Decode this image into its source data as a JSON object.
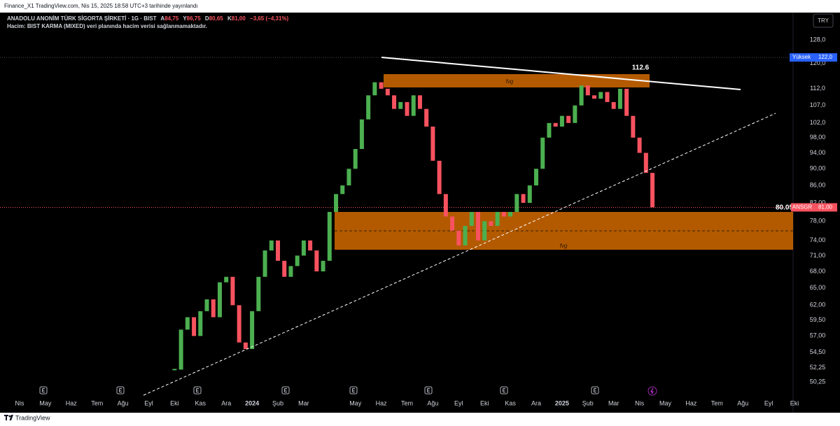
{
  "header": {
    "published": "Finance_X1 TradingView.com, Nis 15, 2025 18:58 UTC+3 tarihinde yayınlandı",
    "currency": "TRY"
  },
  "chart_data": {
    "type": "candlestick",
    "title": "ANADOLU ANONİM TÜRK SİGORTA ŞİRKETİ · 1G · BIST",
    "ohlc": [
      {
        "key": "A",
        "value": "84,75"
      },
      {
        "key": "Y",
        "value": "86,75"
      },
      {
        "key": "D",
        "value": "80,65"
      },
      {
        "key": "K",
        "value": "81,00"
      }
    ],
    "change": "−3,65 (−4,31%)",
    "volume_note": "Hacim: BIST KARMA (MIXED) veri planında hacim verisi sağlanmamaktadır.",
    "categories": [
      "Nis",
      null,
      null,
      null,
      "May",
      null,
      null,
      null,
      "Haz",
      null,
      null,
      null,
      "Tem",
      null,
      null,
      null,
      "Ağu",
      null,
      null,
      null,
      "Eyl",
      null,
      null,
      null,
      "Eki",
      null,
      null,
      null,
      "Kas",
      null,
      null,
      null,
      "Ara",
      null,
      null,
      null,
      "2024",
      null,
      null,
      null,
      "Şub",
      null,
      null,
      null,
      "Mar",
      null,
      null,
      null,
      null,
      null,
      null,
      null,
      "May",
      null,
      null,
      null,
      "Haz",
      null,
      null,
      null,
      "Tem",
      null,
      null,
      null,
      "Ağu",
      null,
      null,
      null,
      "Eyl",
      null,
      null,
      null,
      "Eki",
      null,
      null,
      null,
      "Kas",
      null,
      null,
      null,
      "Ara",
      null,
      null,
      null,
      "2025",
      null,
      null,
      null,
      "Şub",
      null,
      null,
      null,
      "Mar",
      null,
      null,
      null,
      "Nis",
      null,
      null,
      null,
      "May",
      null,
      null,
      null,
      "Haz",
      null,
      null,
      null,
      "Tem",
      null,
      null,
      null,
      "Ağu",
      null,
      null,
      null,
      "Eyl",
      null,
      null,
      null,
      "Eki"
    ],
    "values": [
      null,
      null,
      null,
      null,
      null,
      null,
      null,
      null,
      null,
      null,
      null,
      null,
      null,
      null,
      null,
      null,
      null,
      null,
      null,
      null,
      null,
      null,
      null,
      null,
      52,
      58,
      60,
      57,
      61,
      63,
      60,
      66,
      67,
      62,
      56,
      55,
      61,
      67,
      72,
      74,
      70,
      67,
      69,
      71,
      74,
      72,
      68,
      70,
      80,
      84,
      86,
      90,
      95,
      103,
      110,
      114,
      112,
      110,
      106,
      108,
      104,
      110,
      106,
      101,
      92,
      84,
      79,
      76,
      73,
      77,
      80,
      74,
      78,
      77,
      80,
      79,
      80,
      84,
      82,
      86,
      90,
      98,
      102,
      101,
      104,
      102,
      107,
      113,
      110,
      109,
      111,
      108,
      106,
      112,
      104,
      98,
      94,
      89,
      81,
      null,
      null,
      null,
      null,
      null,
      null,
      null,
      null,
      null,
      null,
      null,
      null,
      null,
      null,
      null,
      null,
      null,
      null,
      null,
      null,
      null,
      null
    ],
    "ylim": [
      48.3,
      137.9
    ],
    "log_scale": true,
    "grid": false,
    "up_color": "#4caf50",
    "down_color": "#f7525f",
    "yticks": [
      {
        "value": 128,
        "label": "128,0"
      },
      {
        "value": 120,
        "label": "120,0"
      },
      {
        "value": 112,
        "label": "112,0"
      },
      {
        "value": 107,
        "label": "107,0"
      },
      {
        "value": 102,
        "label": "102,0"
      },
      {
        "value": 98,
        "label": "98,00"
      },
      {
        "value": 94,
        "label": "94,00"
      },
      {
        "value": 90,
        "label": "90,00"
      },
      {
        "value": 86,
        "label": "86,00"
      },
      {
        "value": 82,
        "label": "82,00"
      },
      {
        "value": 78,
        "label": "78,00"
      },
      {
        "value": 74,
        "label": "74,00"
      },
      {
        "value": 71,
        "label": "71,00"
      },
      {
        "value": 68,
        "label": "68,00"
      },
      {
        "value": 65,
        "label": "65,00"
      },
      {
        "value": 62,
        "label": "62,00"
      },
      {
        "value": 59.5,
        "label": "59,50"
      },
      {
        "value": 57,
        "label": "57,00"
      },
      {
        "value": 54.5,
        "label": "54,50"
      },
      {
        "value": 52.25,
        "label": "52,25"
      },
      {
        "value": 50.25,
        "label": "50,25"
      }
    ],
    "high_marker": {
      "text": "Yüksek",
      "price": {
        "value": 122,
        "label": "122,0"
      }
    },
    "last_price": {
      "symbol": "ANSGR",
      "price": {
        "value": 81,
        "label": "81,00"
      }
    },
    "annotations": {
      "top_level": 112.6,
      "support_level": 80.05,
      "zones": [
        "fvg",
        "fvg"
      ]
    }
  },
  "footer": {
    "brand": "TradingView"
  }
}
